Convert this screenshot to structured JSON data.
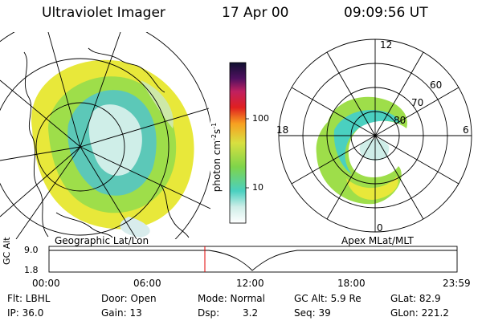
{
  "header": {
    "title": "Ultraviolet Imager",
    "date": "17 Apr 00",
    "time": "09:09:56 UT"
  },
  "colorbar": {
    "unit_text": "photon cm",
    "unit_exp1": "-2",
    "unit_s": "s",
    "unit_exp2": "-1",
    "tick_100": "100",
    "tick_10": "10"
  },
  "left_panel": {
    "label": "Geographic Lat/Lon"
  },
  "right_panel": {
    "label": "Apex MLat/MLT",
    "mlt_labels": {
      "top": "12",
      "bottom": "0",
      "left": "18",
      "right": "6"
    },
    "lat_labels": [
      "60",
      "70",
      "80"
    ]
  },
  "timeline": {
    "ylabel": "GC Alt",
    "y_top": "9.0",
    "y_bottom": "1.8",
    "ticks": [
      "00:00",
      "06:00",
      "12:00",
      "18:00",
      "23:59"
    ],
    "marker_fraction": 0.3819
  },
  "info": {
    "flt": "Flt: LBHL",
    "ip": "IP: 36.0",
    "door": "Door: Open",
    "gain": "Gain: 13",
    "mode": "Mode: Normal",
    "dsp_label": "Dsp:",
    "dsp_value": "3.2",
    "gcalt": "GC Alt: 5.9 Re",
    "seq": "Seq: 39",
    "glat": "GLat: 82.9",
    "glon": "GLon: 221.2"
  },
  "colors": {
    "marker": "#e00000",
    "aurora_yellow": "#e8e83a",
    "aurora_green": "#7ed44a",
    "aurora_cyan": "#4ad0c0",
    "aurora_light": "#cfeee8"
  }
}
